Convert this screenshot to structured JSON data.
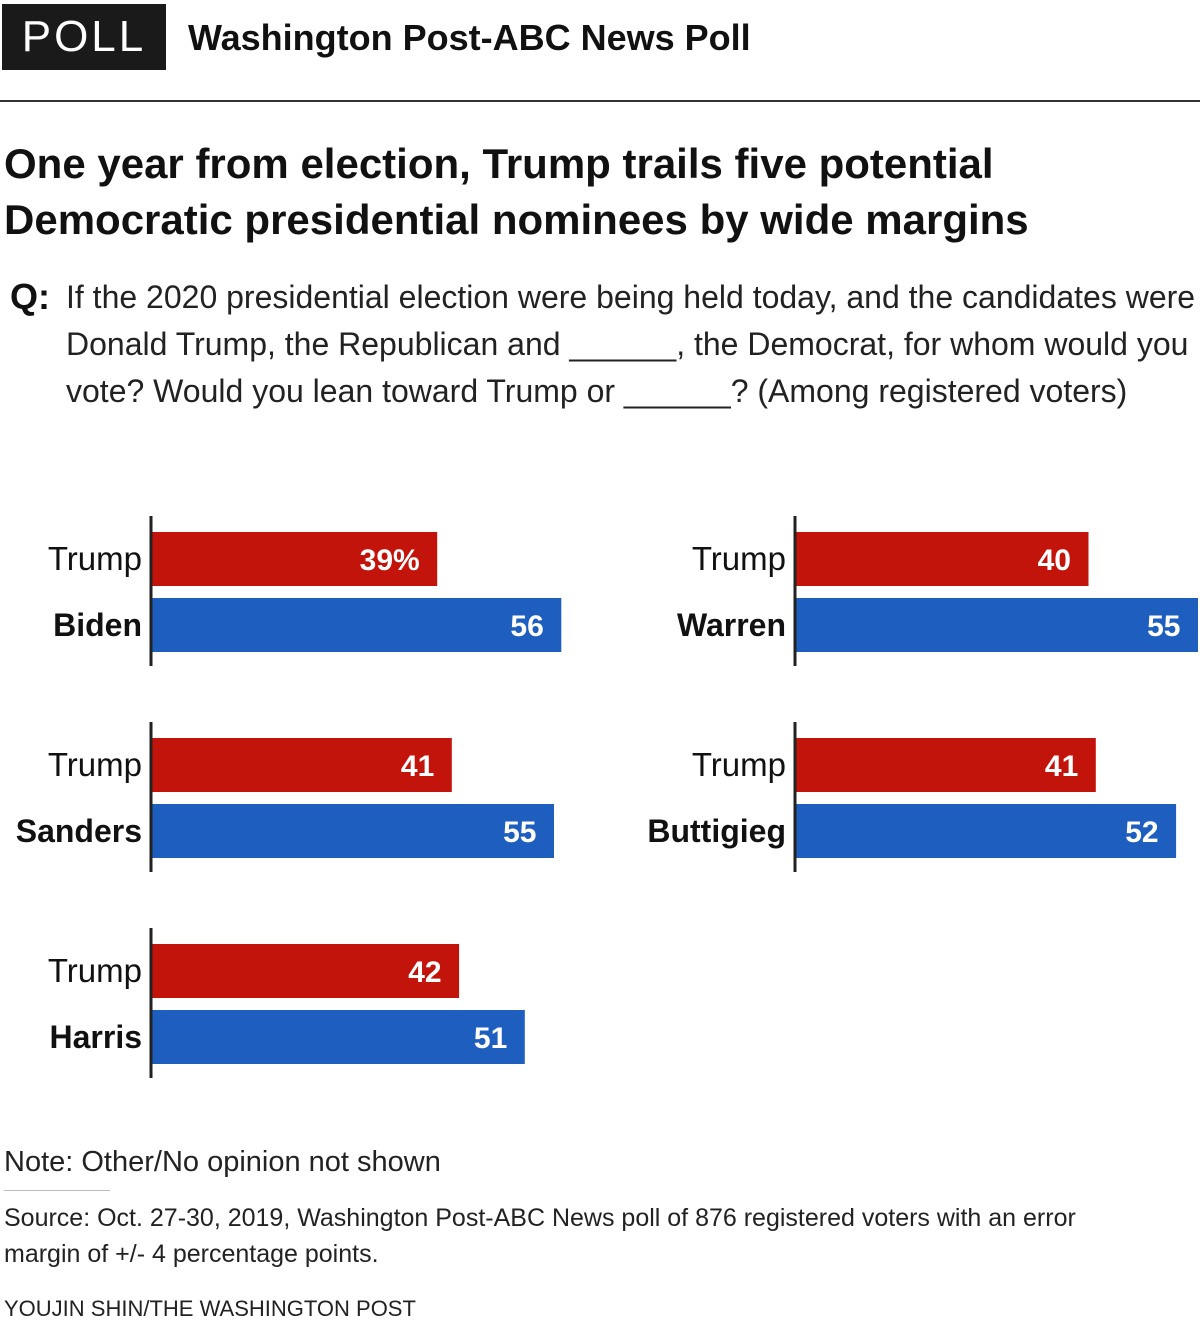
{
  "header": {
    "badge": "POLL",
    "title": "Washington Post-ABC News Poll"
  },
  "headline": "One year from election, Trump trails five potential Democratic presidential nominees by wide margins",
  "question": {
    "label": "Q:",
    "text": "If the 2020 presidential election were being held today, and the candidates were Donald Trump, the Republican and ______, the Democrat, for whom would you vote? Would you lean toward Trump or ______? (Among registered voters)"
  },
  "colors": {
    "republican": "#c3140c",
    "democrat": "#1d5ebf"
  },
  "chart_data": {
    "type": "bar",
    "title": "One year from election, Trump trails five potential Democratic presidential nominees by wide margins",
    "unit": "percent",
    "xlim": [
      0,
      100
    ],
    "grid": false,
    "matchups": [
      {
        "republican": "Trump",
        "democrat": "Biden",
        "republican_value": 39,
        "democrat_value": 56,
        "republican_label": "39%",
        "democrat_label": "56"
      },
      {
        "republican": "Trump",
        "democrat": "Warren",
        "republican_value": 40,
        "democrat_value": 55,
        "republican_label": "40",
        "democrat_label": "55"
      },
      {
        "republican": "Trump",
        "democrat": "Sanders",
        "republican_value": 41,
        "democrat_value": 55,
        "republican_label": "41",
        "democrat_label": "55"
      },
      {
        "republican": "Trump",
        "democrat": "Buttigieg",
        "republican_value": 41,
        "democrat_value": 52,
        "republican_label": "41",
        "democrat_label": "52"
      },
      {
        "republican": "Trump",
        "democrat": "Harris",
        "republican_value": 42,
        "democrat_value": 51,
        "republican_label": "42",
        "democrat_label": "51"
      }
    ]
  },
  "footer": {
    "note": "Note: Other/No opinion not shown",
    "source": "Source: Oct. 27-30, 2019, Washington Post-ABC News poll of 876 registered voters with an error margin of +/- 4 percentage points.",
    "credit": "YOUJIN SHIN/THE WASHINGTON POST"
  }
}
